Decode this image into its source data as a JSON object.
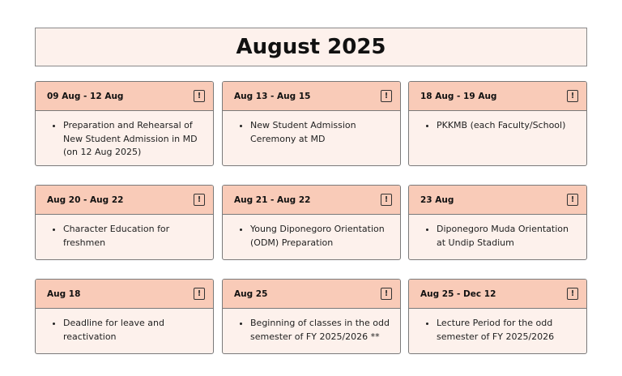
{
  "title": "August 2025",
  "accent_header": "#f9cbb8",
  "accent_body": "#fdf1ec",
  "cards": [
    {
      "date": "09 Aug - 12 Aug",
      "icon": "exclamation-icon",
      "text": "Preparation and Rehearsal of New Student Admission in MD (on 12 Aug 2025)"
    },
    {
      "date": "Aug 13 - Aug 15",
      "icon": "exclamation-icon",
      "text": "New Student Admission Ceremony at MD"
    },
    {
      "date": "18 Aug - 19 Aug",
      "icon": "exclamation-icon",
      "text": "PKKMB (each Faculty/School)"
    },
    {
      "date": "Aug 20 - Aug 22",
      "icon": "exclamation-icon",
      "text": "Character Education for freshmen"
    },
    {
      "date": "Aug 21 - Aug 22",
      "icon": "exclamation-icon",
      "text": "Young Diponegoro Orientation (ODM) Preparation"
    },
    {
      "date": "23 Aug",
      "icon": "exclamation-icon",
      "text": "Diponegoro Muda Orientation at Undip Stadium"
    },
    {
      "date": "Aug 18",
      "icon": "exclamation-icon",
      "text": "Deadline for leave and reactivation"
    },
    {
      "date": "Aug  25",
      "icon": "exclamation-icon",
      "text": "Beginning of classes in the odd semester of FY 2025/2026 **"
    },
    {
      "date": "Aug 25 - Dec 12",
      "icon": "exclamation-icon",
      "text": "Lecture Period for the odd semester of FY 2025/2026"
    }
  ]
}
